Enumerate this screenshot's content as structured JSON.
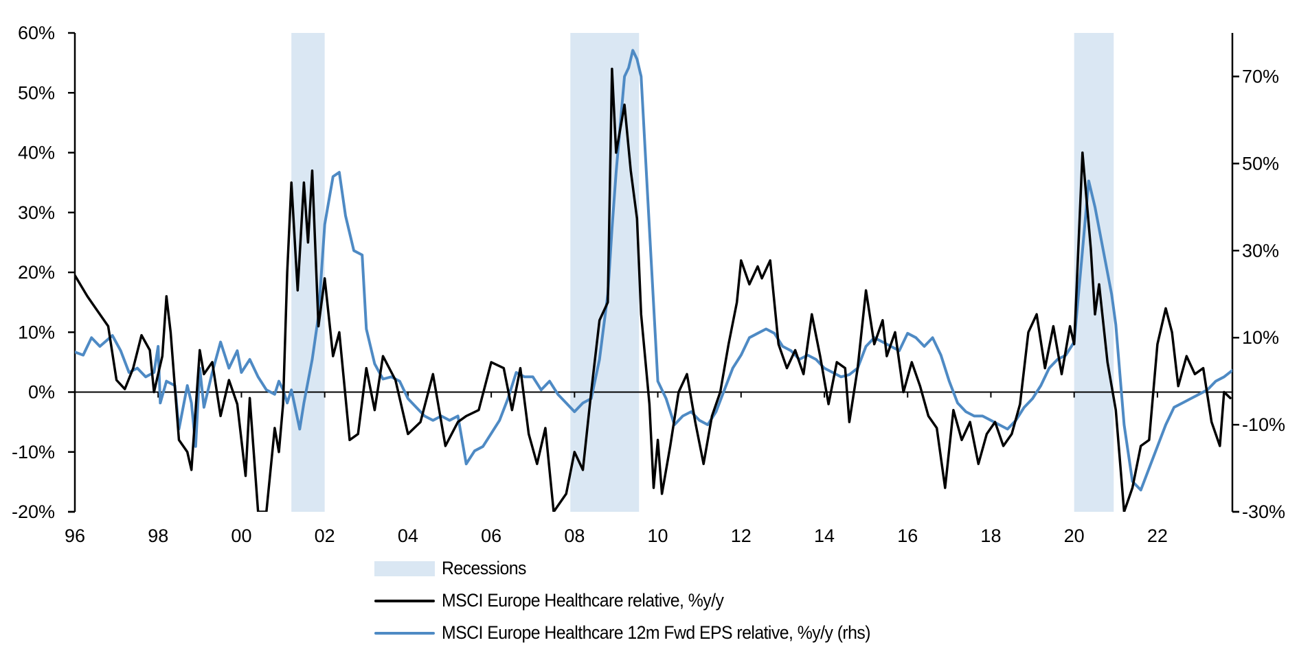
{
  "chart_data": {
    "type": "line",
    "title": "",
    "xlabel": "",
    "ylabel": "",
    "x_range": [
      1996.0,
      2023.8
    ],
    "x_tick_labels": [
      "96",
      "98",
      "00",
      "02",
      "04",
      "06",
      "08",
      "10",
      "12",
      "14",
      "16",
      "18",
      "20",
      "22"
    ],
    "x_tick_years": [
      1996,
      1998,
      2000,
      2002,
      2004,
      2006,
      2008,
      2010,
      2012,
      2014,
      2016,
      2018,
      2020,
      2022
    ],
    "left_axis": {
      "ylim": [
        -20,
        60
      ],
      "ticks": [
        -20,
        -10,
        0,
        10,
        20,
        30,
        40,
        50,
        60
      ],
      "tick_labels": [
        "-20%",
        "-10%",
        "0%",
        "10%",
        "20%",
        "30%",
        "40%",
        "50%",
        "60%"
      ]
    },
    "right_axis": {
      "ylim": [
        -30,
        80
      ],
      "ticks": [
        -30,
        -10,
        10,
        30,
        50,
        70
      ],
      "tick_labels": [
        "-30%",
        "-10%",
        "10%",
        "30%",
        "50%",
        "70%"
      ]
    },
    "grid": false,
    "legend_position": "bottom",
    "recessions": [
      {
        "start": 2001.2,
        "end": 2002.0
      },
      {
        "start": 2007.9,
        "end": 2009.55
      },
      {
        "start": 2020.0,
        "end": 2020.95
      }
    ],
    "legend": [
      {
        "label": "Recessions",
        "kind": "band",
        "color": "#dae7f3"
      },
      {
        "label": "MSCI Europe Healthcare relative, %y/y",
        "kind": "line",
        "color": "#000000"
      },
      {
        "label": "MSCI Europe Healthcare 12m Fwd EPS relative, %y/y (rhs)",
        "kind": "line",
        "color": "#4e8ac4"
      }
    ],
    "series": [
      {
        "name": "MSCI Europe Healthcare relative, %y/y",
        "axis": "left",
        "color": "#000000",
        "x": [
          1996.0,
          1996.3,
          1996.5,
          1996.8,
          1997.0,
          1997.2,
          1997.4,
          1997.6,
          1997.8,
          1997.9,
          1998.0,
          1998.1,
          1998.2,
          1998.3,
          1998.5,
          1998.7,
          1998.8,
          1999.0,
          1999.1,
          1999.3,
          1999.5,
          1999.7,
          1999.9,
          2000.1,
          2000.2,
          2000.4,
          2000.6,
          2000.8,
          2000.9,
          2001.0,
          2001.1,
          2001.2,
          2001.35,
          2001.5,
          2001.6,
          2001.7,
          2001.85,
          2002.0,
          2002.2,
          2002.35,
          2002.6,
          2002.8,
          2003.0,
          2003.2,
          2003.4,
          2003.7,
          2004.0,
          2004.3,
          2004.6,
          2004.9,
          2005.2,
          2005.4,
          2005.7,
          2006.0,
          2006.3,
          2006.5,
          2006.7,
          2006.9,
          2007.1,
          2007.3,
          2007.5,
          2007.8,
          2008.0,
          2008.2,
          2008.4,
          2008.6,
          2008.8,
          2008.9,
          2009.0,
          2009.2,
          2009.35,
          2009.5,
          2009.6,
          2009.8,
          2009.9,
          2010.0,
          2010.1,
          2010.3,
          2010.5,
          2010.7,
          2010.9,
          2011.1,
          2011.3,
          2011.5,
          2011.7,
          2011.9,
          2012.0,
          2012.2,
          2012.4,
          2012.5,
          2012.7,
          2012.9,
          2013.1,
          2013.3,
          2013.5,
          2013.7,
          2013.9,
          2014.1,
          2014.3,
          2014.5,
          2014.6,
          2014.8,
          2015.0,
          2015.2,
          2015.4,
          2015.5,
          2015.7,
          2015.9,
          2016.1,
          2016.3,
          2016.5,
          2016.7,
          2016.9,
          2017.1,
          2017.3,
          2017.5,
          2017.7,
          2017.9,
          2018.1,
          2018.3,
          2018.5,
          2018.7,
          2018.9,
          2019.1,
          2019.3,
          2019.5,
          2019.7,
          2019.9,
          2020.0,
          2020.2,
          2020.4,
          2020.5,
          2020.6,
          2020.8,
          2021.0,
          2021.2,
          2021.4,
          2021.6,
          2021.8,
          2022.0,
          2022.2,
          2022.35,
          2022.5,
          2022.7,
          2022.9,
          2023.1,
          2023.3,
          2023.5,
          2023.6,
          2023.75
        ],
        "values": [
          19.5,
          16,
          14,
          11,
          2,
          0.5,
          4,
          9.5,
          7,
          0,
          3,
          6,
          16,
          10,
          -8,
          -10,
          -13,
          7,
          3,
          5,
          -4,
          2,
          -2,
          -14,
          -1,
          -20,
          -20,
          -6,
          -10,
          -2,
          20,
          35,
          17,
          35,
          25,
          37,
          11,
          19,
          6,
          10,
          -8,
          -7,
          4,
          -3,
          6,
          2,
          -7,
          -5,
          3,
          -9,
          -5,
          -4,
          -3,
          5,
          4,
          -3,
          4,
          -7,
          -12,
          -6,
          -20,
          -17,
          -10,
          -13,
          0,
          12,
          15,
          54,
          40,
          48,
          37,
          29,
          13,
          -2,
          -16,
          -8,
          -17,
          -9,
          0,
          3,
          -5,
          -12,
          -4,
          0,
          8,
          15,
          22,
          18,
          21,
          19,
          22,
          8,
          4,
          7,
          3,
          13,
          6,
          -2,
          5,
          4,
          -5,
          4,
          17,
          8,
          12,
          6,
          10,
          0,
          5,
          1,
          -4,
          -6,
          -16,
          -3,
          -8,
          -5,
          -12,
          -7,
          -5,
          -9,
          -7,
          -2,
          10,
          13,
          4,
          11,
          3,
          11,
          8,
          40,
          24,
          13,
          18,
          5,
          -3,
          -20,
          -16,
          -9,
          -8,
          8,
          14,
          10,
          1,
          6,
          3,
          4,
          -5,
          -9,
          0,
          -1
        ]
      },
      {
        "name": "MSCI Europe Healthcare 12m Fwd EPS relative, %y/y (rhs)",
        "axis": "right",
        "color": "#4e8ac4",
        "x": [
          1996.0,
          1996.2,
          1996.4,
          1996.6,
          1996.9,
          1997.1,
          1997.3,
          1997.5,
          1997.7,
          1997.9,
          1998.0,
          1998.05,
          1998.2,
          1998.4,
          1998.5,
          1998.7,
          1998.8,
          1998.9,
          1999.0,
          1999.1,
          1999.3,
          1999.5,
          1999.7,
          1999.9,
          2000.0,
          2000.2,
          2000.4,
          2000.6,
          2000.8,
          2000.9,
          2001.0,
          2001.1,
          2001.2,
          2001.4,
          2001.5,
          2001.7,
          2001.85,
          2002.0,
          2002.2,
          2002.35,
          2002.5,
          2002.7,
          2002.9,
          2003.0,
          2003.2,
          2003.4,
          2003.6,
          2003.8,
          2004.0,
          2004.2,
          2004.4,
          2004.6,
          2004.8,
          2005.0,
          2005.2,
          2005.4,
          2005.6,
          2005.8,
          2006.0,
          2006.2,
          2006.4,
          2006.6,
          2006.8,
          2007.0,
          2007.2,
          2007.4,
          2007.6,
          2007.8,
          2008.0,
          2008.2,
          2008.4,
          2008.6,
          2008.8,
          2008.9,
          2009.0,
          2009.2,
          2009.3,
          2009.4,
          2009.5,
          2009.6,
          2009.8,
          2010.0,
          2010.2,
          2010.4,
          2010.6,
          2010.8,
          2011.0,
          2011.2,
          2011.4,
          2011.6,
          2011.8,
          2012.0,
          2012.2,
          2012.4,
          2012.6,
          2012.8,
          2013.0,
          2013.2,
          2013.4,
          2013.6,
          2013.8,
          2014.0,
          2014.2,
          2014.4,
          2014.6,
          2014.8,
          2015.0,
          2015.2,
          2015.4,
          2015.6,
          2015.8,
          2016.0,
          2016.2,
          2016.4,
          2016.6,
          2016.8,
          2017.0,
          2017.2,
          2017.4,
          2017.6,
          2017.8,
          2018.0,
          2018.2,
          2018.4,
          2018.6,
          2018.8,
          2019.0,
          2019.2,
          2019.4,
          2019.6,
          2019.8,
          2020.0,
          2020.2,
          2020.35,
          2020.5,
          2020.7,
          2020.9,
          2021.0,
          2021.2,
          2021.4,
          2021.6,
          2021.8,
          2022.0,
          2022.2,
          2022.4,
          2022.6,
          2022.8,
          2023.0,
          2023.2,
          2023.4,
          2023.6,
          2023.8
        ],
        "values": [
          6.7,
          6,
          10,
          8,
          10.5,
          7,
          2,
          3,
          1,
          2,
          8,
          -5,
          0,
          -1,
          -11,
          -1,
          -5,
          -15,
          3,
          -6,
          2,
          9,
          3,
          7,
          2,
          5,
          1,
          -2,
          -3,
          0,
          -2,
          -5,
          -2,
          -11,
          -5,
          5,
          15,
          36,
          47,
          48,
          38,
          30,
          29,
          12,
          4,
          0.5,
          1,
          0,
          -4,
          -6,
          -8,
          -9,
          -8,
          -9,
          -8,
          -19,
          -16,
          -15,
          -12,
          -9,
          -4,
          2,
          1,
          1,
          -2,
          0,
          -3,
          -5,
          -7,
          -5,
          -4,
          5,
          20,
          35,
          48,
          70,
          72,
          76,
          74,
          70,
          35,
          0,
          -4,
          -10,
          -8,
          -7,
          -9,
          -10,
          -7,
          -2,
          3,
          6,
          10,
          11,
          12,
          11,
          8,
          7,
          5,
          6,
          5,
          3,
          2,
          1,
          1.5,
          3,
          8,
          10,
          9,
          8,
          7,
          11,
          10,
          8,
          10,
          6,
          0,
          -5,
          -7,
          -8,
          -8,
          -9,
          -10,
          -11,
          -9,
          -6,
          -4,
          -1,
          3,
          5,
          6,
          9,
          30,
          46,
          40,
          30,
          20,
          13,
          -10,
          -23,
          -25,
          -20,
          -15,
          -10,
          -6,
          -5,
          -4,
          -3,
          -2,
          0,
          1,
          2.5
        ]
      }
    ]
  }
}
